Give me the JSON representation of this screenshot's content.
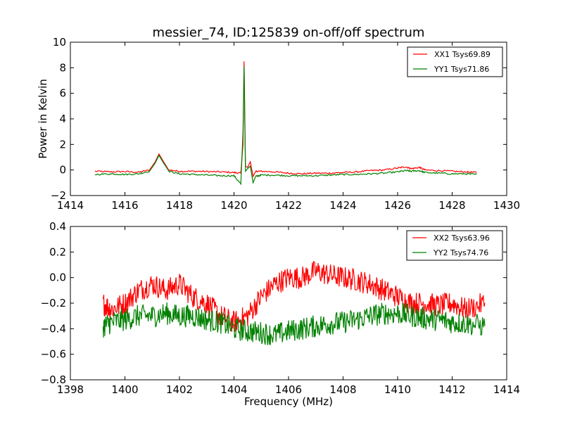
{
  "figure_title": "messier_74, ID:125839 on-off/off spectrum",
  "chart_data": [
    {
      "type": "line",
      "title": "messier_74, ID:125839 on-off/off spectrum",
      "xlabel": "",
      "ylabel": "Power in Kelvin",
      "xlim": [
        1414,
        1430
      ],
      "ylim": [
        -2,
        10
      ],
      "xticks": [
        1414,
        1416,
        1418,
        1420,
        1422,
        1424,
        1426,
        1428,
        1430
      ],
      "yticks": [
        -2,
        0,
        2,
        4,
        6,
        8,
        10
      ],
      "legend": "top-right",
      "grid": false,
      "series": [
        {
          "name": "XX1 Tsys69.89",
          "color": "#ff0000",
          "x": [
            1414.9,
            1415.5,
            1416.0,
            1416.5,
            1416.9,
            1417.1,
            1417.25,
            1417.4,
            1417.6,
            1418.0,
            1418.5,
            1419.0,
            1419.5,
            1420.0,
            1420.25,
            1420.33,
            1420.37,
            1420.42,
            1420.5,
            1420.6,
            1420.7,
            1420.8,
            1421.0,
            1421.5,
            1422.0,
            1422.5,
            1423.0,
            1423.5,
            1424.0,
            1424.5,
            1425.0,
            1425.5,
            1426.0,
            1426.3,
            1426.5,
            1426.8,
            1427.0,
            1427.5,
            1428.0,
            1428.5,
            1428.9
          ],
          "values": [
            -0.1,
            -0.15,
            -0.12,
            -0.18,
            0.0,
            0.6,
            1.25,
            0.7,
            0.0,
            -0.1,
            -0.1,
            -0.12,
            -0.15,
            -0.2,
            -0.25,
            2.0,
            8.5,
            0.3,
            0.2,
            0.65,
            -0.5,
            -0.1,
            -0.1,
            -0.15,
            -0.25,
            -0.3,
            -0.25,
            -0.25,
            -0.2,
            -0.15,
            -0.05,
            0.0,
            0.15,
            0.25,
            0.1,
            0.2,
            0.0,
            -0.05,
            -0.1,
            -0.15,
            -0.2
          ]
        },
        {
          "name": "YY1 Tsys71.86",
          "color": "#008000",
          "x": [
            1414.9,
            1415.5,
            1416.0,
            1416.5,
            1416.9,
            1417.1,
            1417.25,
            1417.4,
            1417.6,
            1418.0,
            1418.5,
            1419.0,
            1419.5,
            1420.0,
            1420.25,
            1420.33,
            1420.37,
            1420.42,
            1420.5,
            1420.6,
            1420.7,
            1420.8,
            1421.0,
            1421.5,
            1422.0,
            1422.5,
            1423.0,
            1423.5,
            1424.0,
            1424.5,
            1425.0,
            1425.5,
            1426.0,
            1426.3,
            1426.5,
            1426.8,
            1427.0,
            1427.5,
            1428.0,
            1428.5,
            1428.9
          ],
          "values": [
            -0.35,
            -0.3,
            -0.35,
            -0.3,
            -0.1,
            0.5,
            1.15,
            0.6,
            -0.1,
            -0.3,
            -0.35,
            -0.4,
            -0.45,
            -0.45,
            -1.1,
            3.0,
            8.1,
            -0.1,
            0.1,
            0.3,
            -1.0,
            -0.5,
            -0.4,
            -0.4,
            -0.45,
            -0.45,
            -0.45,
            -0.4,
            -0.35,
            -0.35,
            -0.3,
            -0.25,
            -0.15,
            -0.05,
            -0.1,
            -0.05,
            -0.2,
            -0.25,
            -0.3,
            -0.3,
            -0.35
          ]
        }
      ]
    },
    {
      "type": "line",
      "title": "",
      "xlabel": "Frequency (MHz)",
      "ylabel": "",
      "xlim": [
        1398,
        1414
      ],
      "ylim": [
        -0.8,
        0.4
      ],
      "xticks": [
        1398,
        1400,
        1402,
        1404,
        1406,
        1408,
        1410,
        1412,
        1414
      ],
      "yticks": [
        -0.8,
        -0.6,
        -0.4,
        -0.2,
        0.0,
        0.2,
        0.4
      ],
      "legend": "top-right",
      "grid": false,
      "series": [
        {
          "name": "XX2 Tsys63.96",
          "color": "#ff0000",
          "x": [
            1399.2,
            1399.5,
            1400.0,
            1400.5,
            1401.0,
            1401.5,
            1402.0,
            1402.5,
            1403.0,
            1403.5,
            1404.0,
            1404.5,
            1405.0,
            1405.5,
            1406.0,
            1406.5,
            1407.0,
            1407.5,
            1408.0,
            1408.5,
            1409.0,
            1409.5,
            1410.0,
            1410.5,
            1411.0,
            1411.5,
            1412.0,
            1412.5,
            1413.2
          ],
          "values": [
            -0.2,
            -0.25,
            -0.2,
            -0.1,
            -0.05,
            -0.1,
            -0.05,
            -0.15,
            -0.2,
            -0.3,
            -0.35,
            -0.3,
            -0.15,
            -0.05,
            0.0,
            0.0,
            0.05,
            0.02,
            0.0,
            -0.02,
            -0.05,
            -0.1,
            -0.15,
            -0.2,
            -0.2,
            -0.22,
            -0.2,
            -0.25,
            -0.2
          ]
        },
        {
          "name": "YY2 Tsys74.76",
          "color": "#008000",
          "x": [
            1399.2,
            1399.5,
            1400.0,
            1400.5,
            1401.0,
            1401.5,
            1402.0,
            1402.5,
            1403.0,
            1403.5,
            1404.0,
            1404.5,
            1405.0,
            1405.5,
            1406.0,
            1406.5,
            1407.0,
            1407.5,
            1408.0,
            1408.5,
            1409.0,
            1409.5,
            1410.0,
            1410.5,
            1411.0,
            1411.5,
            1412.0,
            1412.5,
            1413.2
          ],
          "values": [
            -0.38,
            -0.35,
            -0.33,
            -0.3,
            -0.3,
            -0.28,
            -0.3,
            -0.3,
            -0.33,
            -0.35,
            -0.4,
            -0.42,
            -0.43,
            -0.45,
            -0.42,
            -0.4,
            -0.38,
            -0.36,
            -0.35,
            -0.33,
            -0.3,
            -0.28,
            -0.28,
            -0.3,
            -0.32,
            -0.33,
            -0.35,
            -0.36,
            -0.38
          ]
        }
      ]
    }
  ]
}
